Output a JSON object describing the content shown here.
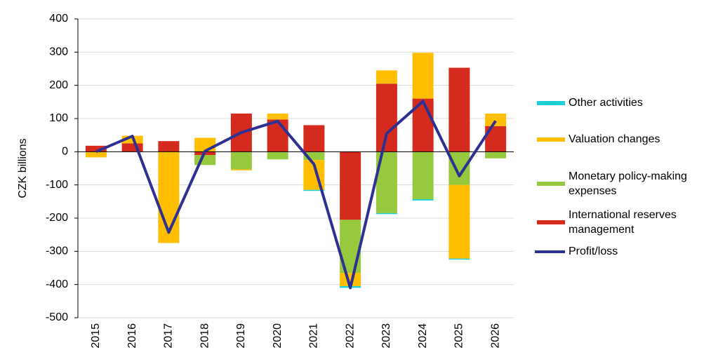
{
  "chart_data": {
    "type": "bar",
    "stacked": true,
    "y_label": "CZK billions",
    "categories": [
      "2015",
      "2016",
      "2017",
      "2018",
      "2019",
      "2020",
      "2021",
      "2022",
      "2023",
      "2024",
      "2025",
      "2026"
    ],
    "series": [
      {
        "name": "Other activities",
        "color": "#1ecfd6",
        "values": [
          0,
          0,
          0,
          0,
          0,
          0,
          -3,
          -5,
          -3,
          -4,
          -3,
          0
        ]
      },
      {
        "name": "Valuation changes",
        "color": "#ffbf00",
        "values": [
          -17,
          23,
          -275,
          42,
          -3,
          18,
          -90,
          -40,
          40,
          138,
          -222,
          38
        ]
      },
      {
        "name": "Monetary policy-making expenses",
        "color": "#96c93d",
        "values": [
          0,
          0,
          0,
          -30,
          -53,
          -23,
          -25,
          -160,
          -185,
          -143,
          -100,
          -20
        ]
      },
      {
        "name": "International reserves management",
        "color": "#d52b1e",
        "values": [
          18,
          25,
          32,
          -10,
          115,
          97,
          80,
          -205,
          205,
          160,
          253,
          77
        ]
      },
      {
        "name": "Profit/loss",
        "type": "line",
        "color": "#2e3192",
        "values": [
          0,
          47,
          -243,
          2,
          58,
          92,
          -38,
          -410,
          55,
          152,
          -73,
          93
        ]
      }
    ],
    "ylim": [
      -500,
      400
    ],
    "yticks": [
      -500,
      -400,
      -300,
      -200,
      -100,
      0,
      100,
      200,
      300,
      400
    ],
    "grid": true
  }
}
